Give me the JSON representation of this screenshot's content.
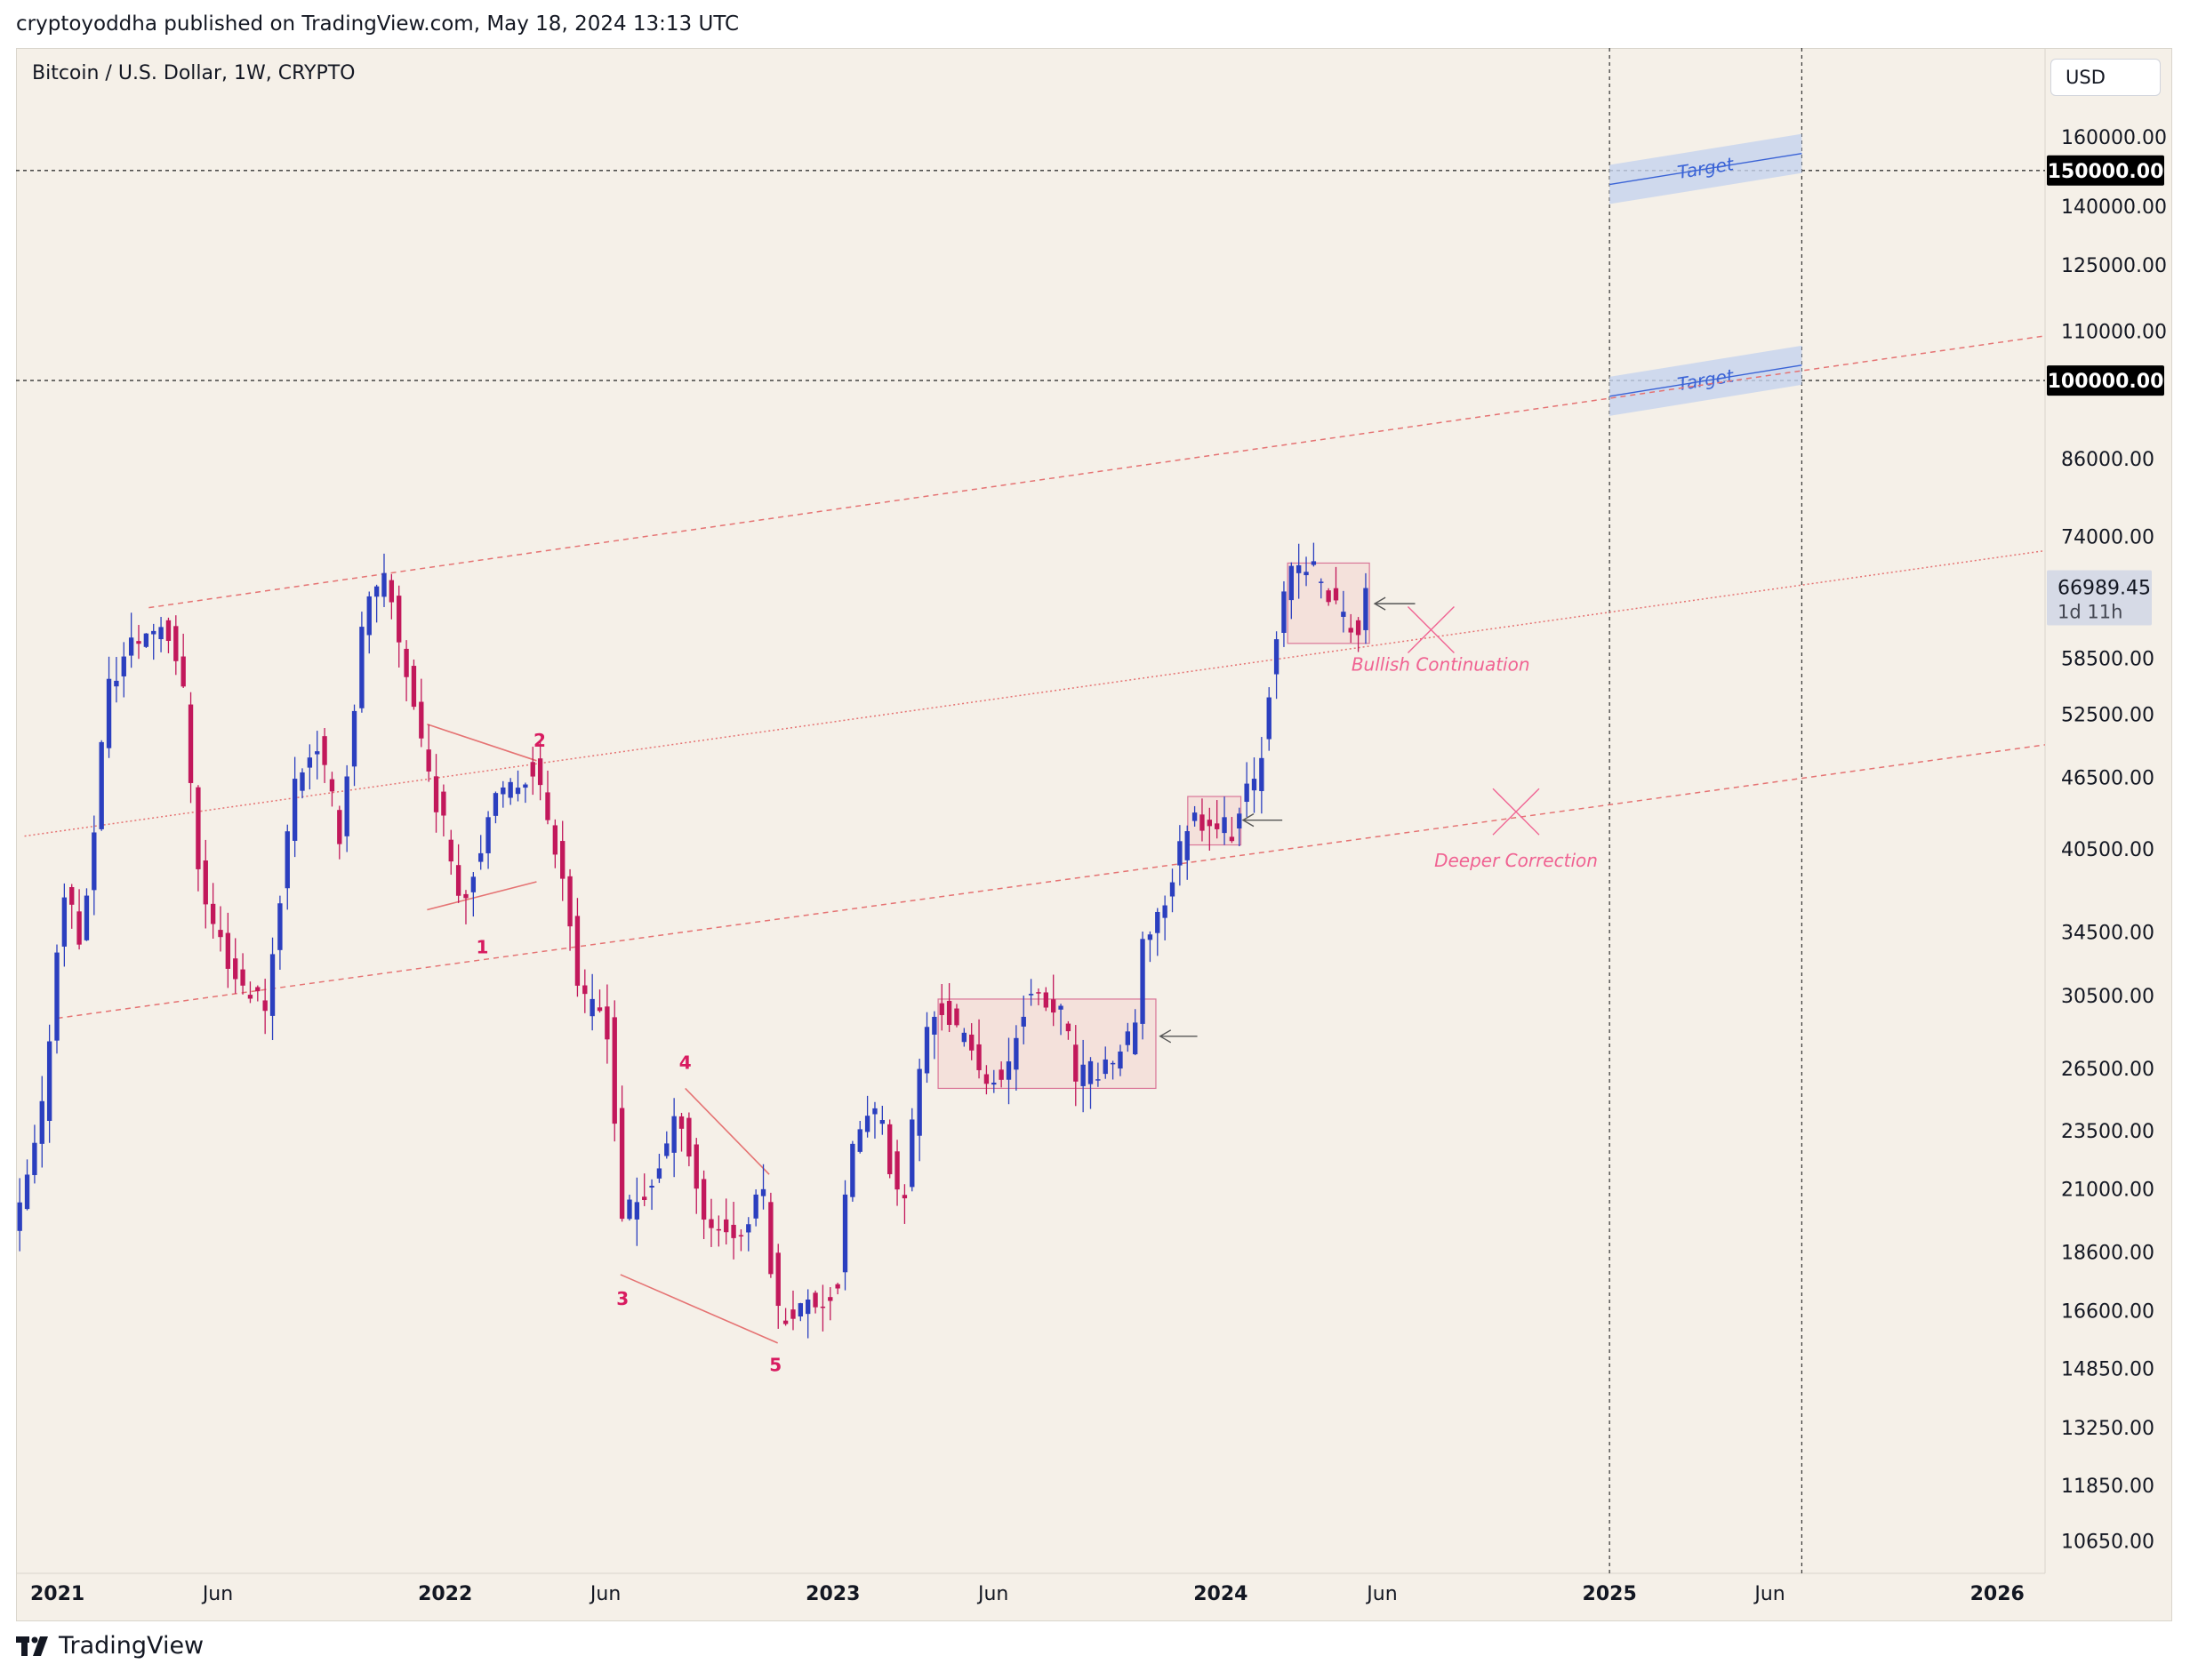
{
  "header": {
    "published": "cryptoyoddha published on TradingView.com, May 18, 2024 13:13 UTC"
  },
  "chart": {
    "title": "Bitcoin / U.S. Dollar, 1W, CRYPTO",
    "currency": "USD",
    "footer_brand": "TradingView"
  },
  "colors": {
    "background": "#f5f0e8",
    "up_candle": "#2b3fbf",
    "down_candle": "#c2185b",
    "channel": "#e57373",
    "target_band": "#c5d3ee",
    "annotation": "#f06292",
    "wave_label": "#d81b60"
  },
  "chart_data": {
    "type": "candlestick",
    "scale": "log",
    "ylim": [
      10000,
      190000
    ],
    "xlim": [
      "2020-11-23",
      "2026-02-15"
    ],
    "y_ticks": [
      10650,
      11850,
      13250,
      14850,
      16600,
      18600,
      21000,
      23500,
      26500,
      30500,
      34500,
      40500,
      46500,
      52500,
      58500,
      74000,
      86000,
      110000,
      125000,
      140000,
      160000
    ],
    "y_tick_labels": [
      "10650.00",
      "11850.00",
      "13250.00",
      "14850.00",
      "16600.00",
      "18600.00",
      "21000.00",
      "23500.00",
      "26500.00",
      "30500.00",
      "34500.00",
      "40500.00",
      "46500.00",
      "52500.00",
      "58500.00",
      "74000.00",
      "86000.00",
      "110000.00",
      "125000.00",
      "140000.00",
      "160000.00"
    ],
    "x_ticks": [
      {
        "label": "2021",
        "date": "2021-01-01",
        "bold": true
      },
      {
        "label": "Jun",
        "date": "2021-06-01",
        "bold": false
      },
      {
        "label": "2022",
        "date": "2022-01-01",
        "bold": true
      },
      {
        "label": "Jun",
        "date": "2022-06-01",
        "bold": false
      },
      {
        "label": "2023",
        "date": "2023-01-01",
        "bold": true
      },
      {
        "label": "Jun",
        "date": "2023-06-01",
        "bold": false
      },
      {
        "label": "2024",
        "date": "2024-01-01",
        "bold": true
      },
      {
        "label": "Jun",
        "date": "2024-06-01",
        "bold": false
      },
      {
        "label": "2025",
        "date": "2025-01-01",
        "bold": true
      },
      {
        "label": "Jun",
        "date": "2025-06-01",
        "bold": false
      },
      {
        "label": "2026",
        "date": "2026-01-01",
        "bold": true
      }
    ],
    "horizontal_levels": [
      {
        "price": 150000,
        "label": "150000.00"
      },
      {
        "price": 100000,
        "label": "100000.00"
      }
    ],
    "vertical_markers": [
      "2025-01-01",
      "2025-07-01"
    ],
    "last_price": {
      "price": 66989.45,
      "label": "66989.45",
      "countdown": "1d 11h"
    },
    "price_path": [
      [
        "2020-11-23",
        19000
      ],
      [
        "2020-12-20",
        23800
      ],
      [
        "2021-01-10",
        38000
      ],
      [
        "2021-01-28",
        33500
      ],
      [
        "2021-02-20",
        55000
      ],
      [
        "2021-03-14",
        60000
      ],
      [
        "2021-04-15",
        63000
      ],
      [
        "2021-05-01",
        57000
      ],
      [
        "2021-05-20",
        37000
      ],
      [
        "2021-06-22",
        31500
      ],
      [
        "2021-07-20",
        30000
      ],
      [
        "2021-08-15",
        46000
      ],
      [
        "2021-09-05",
        50000
      ],
      [
        "2021-09-28",
        41500
      ],
      [
        "2021-10-20",
        64000
      ],
      [
        "2021-11-10",
        68000
      ],
      [
        "2021-12-01",
        56000
      ],
      [
        "2021-12-20",
        47000
      ],
      [
        "2022-01-22",
        36500
      ],
      [
        "2022-02-15",
        43500
      ],
      [
        "2022-03-28",
        47500
      ],
      [
        "2022-04-25",
        39000
      ],
      [
        "2022-05-12",
        30000
      ],
      [
        "2022-06-05",
        29500
      ],
      [
        "2022-06-20",
        20000
      ],
      [
        "2022-07-10",
        20500
      ],
      [
        "2022-08-14",
        24400
      ],
      [
        "2022-09-05",
        19800
      ],
      [
        "2022-10-10",
        19200
      ],
      [
        "2022-10-31",
        21000
      ],
      [
        "2022-11-12",
        16500
      ],
      [
        "2022-12-15",
        16800
      ],
      [
        "2023-01-08",
        17200
      ],
      [
        "2023-01-22",
        23000
      ],
      [
        "2023-02-15",
        24500
      ],
      [
        "2023-03-10",
        20000
      ],
      [
        "2023-03-30",
        28000
      ],
      [
        "2023-04-15",
        30000
      ],
      [
        "2023-05-20",
        26800
      ],
      [
        "2023-06-12",
        25500
      ],
      [
        "2023-07-05",
        30500
      ],
      [
        "2023-08-10",
        29300
      ],
      [
        "2023-08-20",
        26000
      ],
      [
        "2023-09-15",
        26500
      ],
      [
        "2023-10-15",
        28200
      ],
      [
        "2023-10-24",
        34000
      ],
      [
        "2023-11-15",
        37000
      ],
      [
        "2023-12-05",
        43000
      ],
      [
        "2023-12-25",
        43000
      ],
      [
        "2024-01-15",
        42000
      ],
      [
        "2024-02-10",
        47500
      ],
      [
        "2024-02-25",
        61500
      ],
      [
        "2024-03-13",
        70000
      ],
      [
        "2024-04-01",
        69500
      ],
      [
        "2024-04-22",
        64500
      ],
      [
        "2024-05-13",
        61500
      ],
      [
        "2024-05-18",
        66989.45
      ]
    ],
    "channel_lines": [
      {
        "style": "dashed",
        "points": [
          [
            "2021-03-28",
            64500
          ],
          [
            "2026-02-15",
            109000
          ]
        ]
      },
      {
        "style": "dotted",
        "points": [
          [
            "2020-12-01",
            41500
          ],
          [
            "2026-02-15",
            72000
          ]
        ]
      },
      {
        "style": "dashed",
        "points": [
          [
            "2021-01-01",
            29200
          ],
          [
            "2026-02-15",
            49500
          ]
        ]
      }
    ],
    "consolidation_boxes": [
      {
        "start": "2023-04-10",
        "end": "2023-11-01",
        "low": 25500,
        "high": 30300
      },
      {
        "start": "2023-12-01",
        "end": "2024-01-20",
        "low": 40800,
        "high": 44800
      },
      {
        "start": "2024-03-04",
        "end": "2024-05-20",
        "low": 60200,
        "high": 70300
      }
    ],
    "arrows": [
      {
        "start": "2023-11-05",
        "end": "2023-12-10",
        "price": 28200
      },
      {
        "start": "2024-01-22",
        "end": "2024-02-28",
        "price": 42800
      },
      {
        "start": "2024-05-25",
        "end": "2024-07-02",
        "price": 65000
      }
    ],
    "wave_lines": [
      {
        "points": [
          [
            "2021-12-15",
            51500
          ],
          [
            "2022-03-28",
            48000
          ]
        ]
      },
      {
        "points": [
          [
            "2021-12-15",
            36000
          ],
          [
            "2022-03-28",
            38000
          ]
        ]
      },
      {
        "points": [
          [
            "2022-06-15",
            17800
          ],
          [
            "2022-11-10",
            15600
          ]
        ]
      },
      {
        "points": [
          [
            "2022-08-15",
            25500
          ],
          [
            "2022-11-02",
            21600
          ]
        ]
      }
    ],
    "wave_labels": [
      {
        "text": "1",
        "date": "2022-02-05",
        "price": 33500
      },
      {
        "text": "2",
        "date": "2022-03-31",
        "price": 49900
      },
      {
        "text": "3",
        "date": "2022-06-17",
        "price": 17000
      },
      {
        "text": "4",
        "date": "2022-08-15",
        "price": 26800
      },
      {
        "text": "5",
        "date": "2022-11-08",
        "price": 14950
      }
    ],
    "annotations": [
      {
        "text": "Bullish Continuation",
        "date": "2024-07-26",
        "price": 57800,
        "cross_date": "2024-07-17",
        "cross_price": 61800
      },
      {
        "text": "Deeper Correction",
        "date": "2024-10-05",
        "price": 39600,
        "cross_date": "2024-10-05",
        "cross_price": 43500
      }
    ],
    "targets": [
      {
        "label": "Target",
        "start": "2025-01-01",
        "end": "2025-07-01",
        "start_price": 146000,
        "end_price": 155000
      },
      {
        "label": "Target",
        "start": "2025-01-01",
        "end": "2025-07-01",
        "start_price": 97000,
        "end_price": 103000
      }
    ]
  }
}
